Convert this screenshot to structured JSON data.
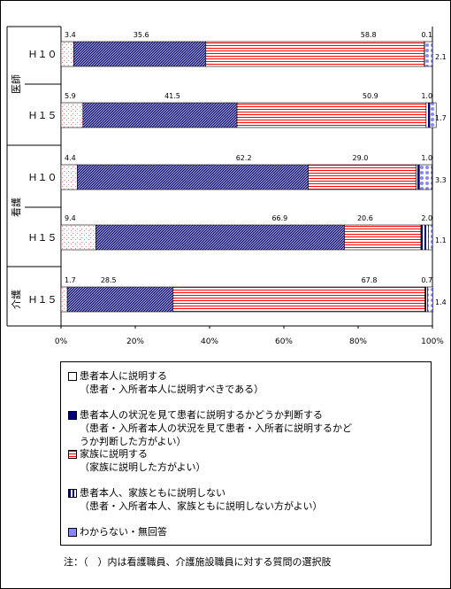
{
  "chart_data": {
    "type": "bar",
    "orientation": "horizontal",
    "stacked": true,
    "groups": [
      {
        "label": "医師",
        "rows": [
          "H10",
          "H15"
        ]
      },
      {
        "label": "看護",
        "rows": [
          "H10",
          "H15"
        ]
      },
      {
        "label": "介護",
        "rows": [
          "H15"
        ]
      }
    ],
    "categories": [
      "Ｈ１０",
      "Ｈ１５",
      "Ｈ１０",
      "Ｈ１５",
      "Ｈ１５"
    ],
    "series": [
      {
        "name": "患者本人に説明する",
        "values": [
          3.4,
          5.9,
          4.4,
          9.4,
          1.7
        ],
        "labels": [
          "3.4",
          "5.9",
          "4.4",
          "9.4",
          "1.7"
        ]
      },
      {
        "name": "患者本人の状況を見て患者に説明するかどうか判断する",
        "values": [
          35.6,
          41.5,
          62.2,
          66.9,
          28.5
        ],
        "labels": [
          "35.6",
          "41.5",
          "62.2",
          "66.9",
          "28.5"
        ]
      },
      {
        "name": "家族に説明する",
        "values": [
          58.8,
          50.9,
          29.0,
          20.6,
          67.8
        ],
        "labels": [
          "58.8",
          "50.9",
          "29.0",
          "20.6",
          "67.8"
        ]
      },
      {
        "name": "患者本人、家族ともに説明しない",
        "values": [
          0.1,
          1.0,
          1.0,
          2.0,
          0.7
        ],
        "labels": [
          "0.1",
          "1.0",
          "1.0",
          "2.0",
          "0.7"
        ]
      },
      {
        "name": "わからない・無回答",
        "values": [
          2.1,
          1.7,
          3.3,
          1.1,
          1.4
        ],
        "labels": [
          "2.1",
          "1.7",
          "3.3",
          "1.1",
          "1.4"
        ]
      }
    ],
    "xlim": [
      0,
      100
    ],
    "xticks": [
      "0%",
      "20%",
      "40%",
      "60%",
      "80%",
      "100%"
    ],
    "grid": false,
    "legend_position": "bottom"
  },
  "colors": {
    "s1": "#ff9999",
    "s2": "#000080",
    "s3": "#ff0000",
    "s4": "#000080",
    "s5": "#8888ff"
  },
  "legend": [
    {
      "label": "患者本人に説明する",
      "sub": "（患者・入所者本人に説明すべきである）"
    },
    {
      "label": "患者本人の状況を見て患者に説明するかどうか判断する",
      "sub": "（患者・入所者本人の状況を見て患者・入所者に説明するかど\nうか判断した方がよい）"
    },
    {
      "label": "家族に説明する",
      "sub": "（家族に説明した方がよい）"
    },
    {
      "label": "患者本人、家族ともに説明しない",
      "sub": "（患者・入所者本人、家族ともに説明しない方がよい）"
    },
    {
      "label": "わからない・無回答",
      "sub": ""
    }
  ],
  "note": "注：（　）内は看護職員、介護施設職員に対する質問の選択肢"
}
